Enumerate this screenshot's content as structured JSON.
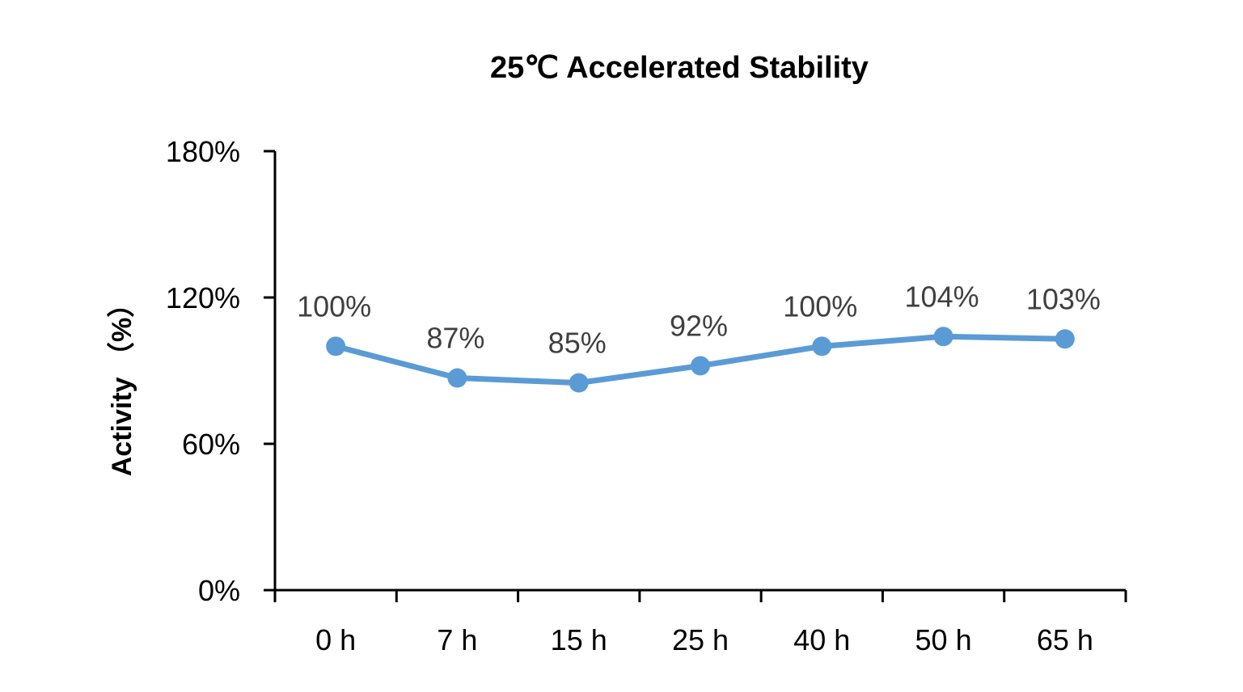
{
  "chart_data": {
    "type": "line",
    "title": "25℃ Accelerated Stability",
    "xlabel": "",
    "ylabel": "Activity （%）",
    "categories": [
      "0 h",
      "7 h",
      "15 h",
      "25 h",
      "40 h",
      "50 h",
      "65 h"
    ],
    "series": [
      {
        "values": [
          100,
          87,
          85,
          92,
          100,
          104,
          103
        ],
        "data_labels": [
          "100%",
          "87%",
          "85%",
          "92%",
          "100%",
          "104%",
          "103%"
        ],
        "color": "#5B9BD5"
      }
    ],
    "ylim": [
      0,
      180
    ],
    "y_ticks": [
      0,
      60,
      120,
      180
    ],
    "y_tick_labels": [
      "0%",
      "60%",
      "120%",
      "180%"
    ],
    "grid": false,
    "legend": "none"
  }
}
